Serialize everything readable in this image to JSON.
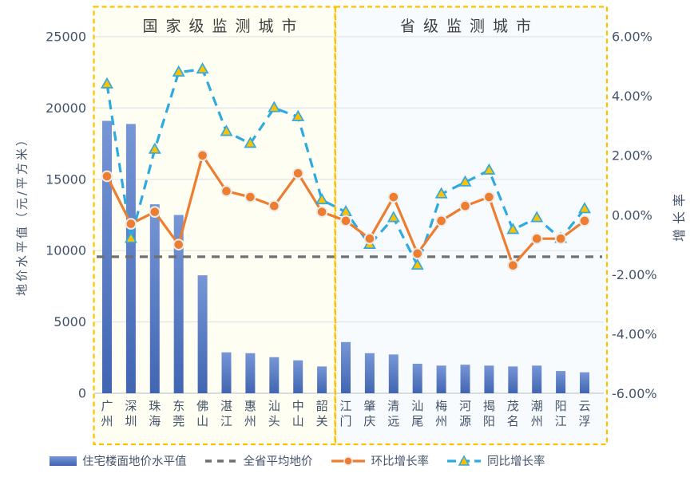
{
  "panel_titles": {
    "national": "国家级监测城市",
    "provincial": "省级监测城市"
  },
  "axes": {
    "left_title": "地价水平值（元/平方米）",
    "right_title": "增长率",
    "left_ticks": [
      "25000",
      "20000",
      "15000",
      "10000",
      "5000",
      "0"
    ],
    "right_ticks": [
      "6.00%",
      "4.00%",
      "2.00%",
      "0.00%",
      "-2.00%",
      "-4.00%",
      "-6.00%"
    ]
  },
  "legend": [
    {
      "label": "住宅楼面地价水平值",
      "swatch": "blue-bar"
    },
    {
      "label": "全省平均地价",
      "swatch": "gray-dashed-line"
    },
    {
      "label": "环比增长率",
      "swatch": "orange-line-circle-marker"
    },
    {
      "label": "同比增长率",
      "swatch": "cyan-dashed-line-triangle-marker"
    }
  ],
  "colors": {
    "bar_top": "#7796d6",
    "bar_bottom": "#4065b2",
    "mom_line": "#ED7D31",
    "yoy_line": "#2FAAE0",
    "triangle_fill": "#FFC000",
    "avg_line": "#6f6f6f",
    "panel_border": "#FFC000",
    "national_bg": "#FFFEF2",
    "provincial_bg": "#F8FBFE",
    "gridline": "#E1E4E8",
    "axis_text": "#44546A",
    "title_text": "#3f3f3f"
  },
  "chart_data": {
    "type": "bar",
    "subtype": "combo bar + two line series on secondary percent axis",
    "categories": [
      "广州",
      "深圳",
      "珠海",
      "东莞",
      "佛山",
      "湛江",
      "惠州",
      "汕头",
      "中山",
      "韶关",
      "江门",
      "肇庆",
      "清远",
      "汕尾",
      "梅州",
      "河源",
      "揭阳",
      "茂名",
      "潮州",
      "阳江",
      "云浮"
    ],
    "national_cities_count": 10,
    "panel_split_after_category": "韶关",
    "series": [
      {
        "name": "住宅楼面地价水平值",
        "type": "bar",
        "axis": "left",
        "unit": "元/平方米",
        "values": [
          19100,
          18880,
          13250,
          12500,
          8270,
          2870,
          2810,
          2530,
          2310,
          1880,
          3590,
          2810,
          2720,
          2070,
          1940,
          2000,
          1940,
          1880,
          1940,
          1560,
          1470
        ]
      },
      {
        "name": "全省平均地价",
        "type": "constant-dashed-line",
        "axis": "left",
        "unit": "元/平方米",
        "value": 9570
      },
      {
        "name": "环比增长率",
        "type": "line-circle-markers",
        "axis": "right",
        "unit": "%",
        "values": [
          1.3,
          -0.3,
          0.1,
          -1.0,
          2.0,
          0.8,
          0.6,
          0.3,
          1.4,
          0.1,
          -0.2,
          -0.8,
          0.6,
          -1.3,
          -0.2,
          0.3,
          0.6,
          -1.7,
          -0.8,
          -0.8,
          -0.2
        ]
      },
      {
        "name": "同比增长率",
        "type": "dashed-line-triangle-markers",
        "axis": "right",
        "unit": "%",
        "values": [
          4.4,
          -0.8,
          2.2,
          4.8,
          4.9,
          2.8,
          2.4,
          3.6,
          3.3,
          0.5,
          0.1,
          -1.0,
          -0.1,
          -1.7,
          0.7,
          1.1,
          1.5,
          -0.5,
          -0.1,
          -0.8,
          0.2
        ]
      }
    ],
    "ylim_left": [
      0,
      25000
    ],
    "ylim_right_percent": [
      -6,
      6
    ],
    "grid": "horizontal gridlines at left-axis ticks",
    "legend_position": "bottom-left"
  }
}
